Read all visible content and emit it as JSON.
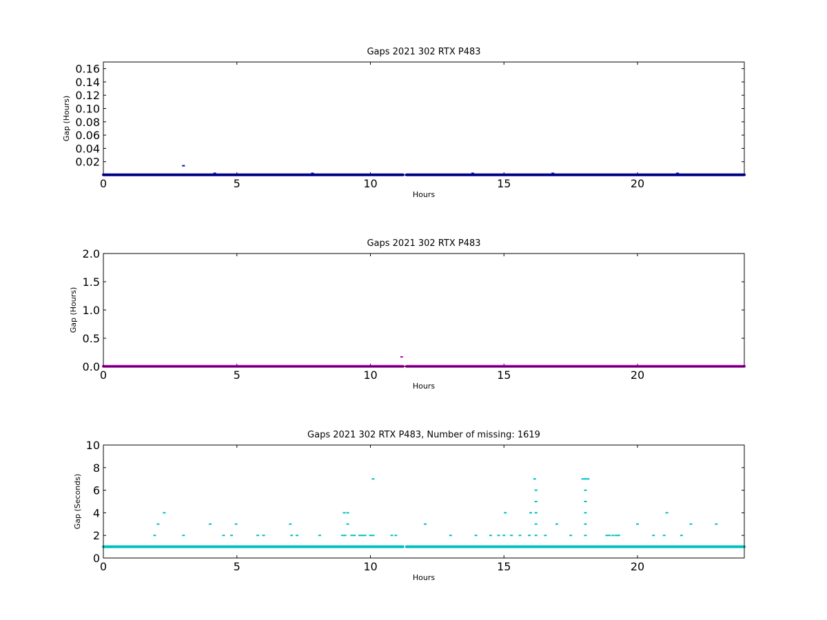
{
  "chart_data": [
    {
      "type": "scatter",
      "title": "Gaps 2021 302 RTX  P483",
      "xlabel": "Hours",
      "ylabel": "Gap (Hours)",
      "xlim": [
        0,
        24
      ],
      "ylim": [
        0,
        0.17
      ],
      "xticks": [
        "0",
        "5",
        "10",
        "15",
        "20"
      ],
      "yticks": [
        "0.02",
        "0.04",
        "0.06",
        "0.08",
        "0.10",
        "0.12",
        "0.14",
        "0.16"
      ],
      "grid": false,
      "color": "#0000bf",
      "baseline": {
        "y": 0.0003,
        "x_segments": [
          [
            0,
            11.22
          ],
          [
            11.35,
            24
          ]
        ]
      },
      "series": [
        {
          "values": [
            {
              "x": 3.0,
              "y": 0.0139
            },
            {
              "x": 4.17,
              "y": 0.0025
            },
            {
              "x": 7.83,
              "y": 0.0025
            },
            {
              "x": 13.83,
              "y": 0.0025
            },
            {
              "x": 16.83,
              "y": 0.0025
            },
            {
              "x": 21.5,
              "y": 0.0025
            }
          ]
        }
      ]
    },
    {
      "type": "scatter",
      "title": "Gaps 2021 302 RTX  P483",
      "xlabel": "Hours",
      "ylabel": "Gap (Hours)",
      "xlim": [
        0,
        24
      ],
      "ylim": [
        0,
        2.0
      ],
      "xticks": [
        "0",
        "5",
        "10",
        "15",
        "20"
      ],
      "yticks": [
        "0.0",
        "0.5",
        "1.0",
        "1.5",
        "2.0"
      ],
      "grid": false,
      "color": "#bf00bf",
      "baseline": {
        "y": 0.003,
        "x_segments": [
          [
            0,
            11.22
          ],
          [
            11.35,
            24
          ]
        ]
      },
      "series": [
        {
          "values": [
            {
              "x": 11.17,
              "y": 0.17
            }
          ]
        }
      ]
    },
    {
      "type": "scatter",
      "title": "Gaps 2021 302 RTX  P483, Number of missing: 1619",
      "xlabel": "Hours",
      "ylabel": "Gap (Seconds)",
      "xlim": [
        0,
        24
      ],
      "ylim": [
        0,
        10
      ],
      "xticks": [
        "0",
        "5",
        "10",
        "15",
        "20"
      ],
      "yticks": [
        "0",
        "2",
        "4",
        "6",
        "8",
        "10"
      ],
      "grid": false,
      "color": "#00bfbf",
      "baseline": {
        "y": 1,
        "x_segments": [
          [
            0,
            11.22
          ],
          [
            11.35,
            24
          ]
        ]
      },
      "series": [
        {
          "values": [
            {
              "x": 1.92,
              "y": 2
            },
            {
              "x": 2.05,
              "y": 3
            },
            {
              "x": 2.28,
              "y": 4
            },
            {
              "x": 3.0,
              "y": 2
            },
            {
              "x": 4.0,
              "y": 3
            },
            {
              "x": 4.5,
              "y": 2
            },
            {
              "x": 4.8,
              "y": 2
            },
            {
              "x": 4.97,
              "y": 3
            },
            {
              "x": 5.78,
              "y": 2
            },
            {
              "x": 6.0,
              "y": 2
            },
            {
              "x": 7.0,
              "y": 3
            },
            {
              "x": 7.05,
              "y": 2
            },
            {
              "x": 7.25,
              "y": 2
            },
            {
              "x": 8.1,
              "y": 2
            },
            {
              "x": 8.95,
              "y": 2
            },
            {
              "x": 9.05,
              "y": 2
            },
            {
              "x": 9.02,
              "y": 4
            },
            {
              "x": 9.15,
              "y": 4
            },
            {
              "x": 9.15,
              "y": 3
            },
            {
              "x": 9.3,
              "y": 2
            },
            {
              "x": 9.4,
              "y": 2
            },
            {
              "x": 9.6,
              "y": 2
            },
            {
              "x": 9.7,
              "y": 2
            },
            {
              "x": 9.8,
              "y": 2
            },
            {
              "x": 10.0,
              "y": 2
            },
            {
              "x": 10.1,
              "y": 2
            },
            {
              "x": 10.1,
              "y": 7
            },
            {
              "x": 10.8,
              "y": 2
            },
            {
              "x": 10.95,
              "y": 2
            },
            {
              "x": 12.05,
              "y": 3
            },
            {
              "x": 13.0,
              "y": 2
            },
            {
              "x": 13.95,
              "y": 2
            },
            {
              "x": 14.5,
              "y": 2
            },
            {
              "x": 14.8,
              "y": 2
            },
            {
              "x": 15.0,
              "y": 2
            },
            {
              "x": 15.05,
              "y": 4
            },
            {
              "x": 15.28,
              "y": 2
            },
            {
              "x": 15.6,
              "y": 2
            },
            {
              "x": 15.95,
              "y": 2
            },
            {
              "x": 16.0,
              "y": 4
            },
            {
              "x": 16.15,
              "y": 7
            },
            {
              "x": 16.2,
              "y": 6
            },
            {
              "x": 16.2,
              "y": 5
            },
            {
              "x": 16.2,
              "y": 4
            },
            {
              "x": 16.2,
              "y": 3
            },
            {
              "x": 16.2,
              "y": 2
            },
            {
              "x": 16.55,
              "y": 2
            },
            {
              "x": 16.98,
              "y": 3
            },
            {
              "x": 17.5,
              "y": 2
            },
            {
              "x": 17.95,
              "y": 7
            },
            {
              "x": 18.05,
              "y": 7
            },
            {
              "x": 18.15,
              "y": 7
            },
            {
              "x": 18.05,
              "y": 6
            },
            {
              "x": 18.05,
              "y": 5
            },
            {
              "x": 18.05,
              "y": 4
            },
            {
              "x": 18.05,
              "y": 3
            },
            {
              "x": 18.05,
              "y": 2
            },
            {
              "x": 18.85,
              "y": 2
            },
            {
              "x": 18.95,
              "y": 2
            },
            {
              "x": 19.08,
              "y": 2
            },
            {
              "x": 19.2,
              "y": 2
            },
            {
              "x": 19.3,
              "y": 2
            },
            {
              "x": 20.0,
              "y": 3
            },
            {
              "x": 20.6,
              "y": 2
            },
            {
              "x": 21.0,
              "y": 2
            },
            {
              "x": 21.1,
              "y": 4
            },
            {
              "x": 21.65,
              "y": 2
            },
            {
              "x": 22.0,
              "y": 3
            },
            {
              "x": 22.95,
              "y": 3
            }
          ]
        }
      ]
    }
  ]
}
